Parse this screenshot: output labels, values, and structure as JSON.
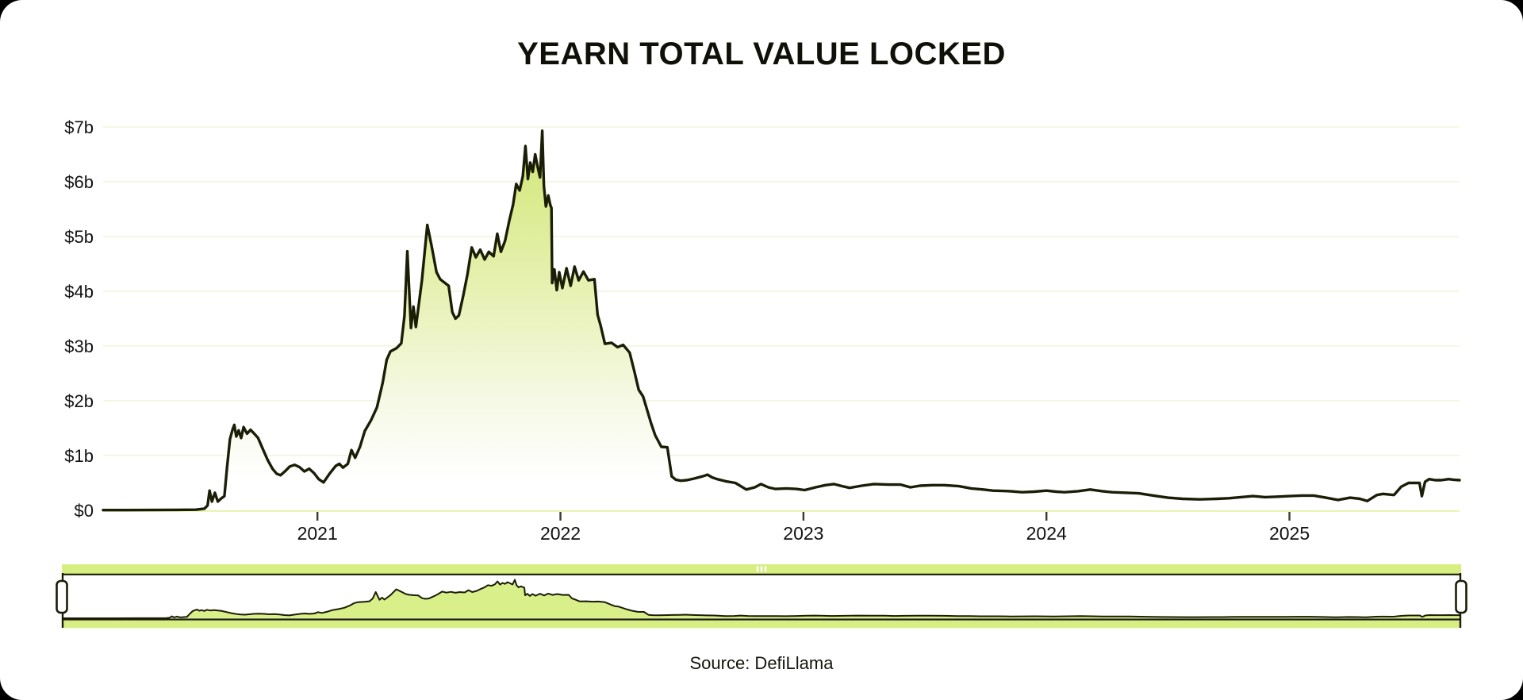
{
  "title": "YEARN TOTAL VALUE LOCKED",
  "source_caption": "Source: DefiLlama",
  "colors": {
    "page_background": "#000000",
    "card_background": "#ffffff",
    "line": "#1b1d06",
    "area_gradient_top": "#d0e673",
    "area_gradient_mid": "#e7f1b2",
    "area_gradient_low": "#f6f9e6",
    "area_gradient_bottom": "#ffffff",
    "gridline": "#f4f8e3",
    "zero_axis_line": "#e4f2a5",
    "axis_label": "#111111",
    "tick_mark": "#3a3a30",
    "navigator_rail": "#d7ee83",
    "navigator_mini_fill": "#d9ef8a",
    "navigator_handle_fill": "#ffffff",
    "navigator_grip": "#ffffff"
  },
  "chart_data": {
    "type": "area",
    "title": "YEARN TOTAL VALUE LOCKED",
    "series_name": "Yearn Total Value Locked",
    "x_unit": "decimal year",
    "y_unit": "USD billions",
    "ylim": [
      0,
      7.5
    ],
    "x_range": [
      2020.118,
      2025.7
    ],
    "grid": "horizontal, very faint",
    "legend": false,
    "y_tick_values": [
      0,
      1,
      2,
      3,
      4,
      5,
      6,
      7
    ],
    "y_tick_labels": [
      "$0",
      "$1b",
      "$2b",
      "$3b",
      "$4b",
      "$5b",
      "$6b",
      "$7b"
    ],
    "x_tick_values": [
      2021,
      2022,
      2023,
      2024,
      2025
    ],
    "x_tick_labels": [
      "2021",
      "2022",
      "2023",
      "2024",
      "2025"
    ],
    "navigator": {
      "present": true,
      "selection": "full range",
      "grip_icon": "three-vertical-bars"
    },
    "points": [
      [
        2020.118,
        0.004
      ],
      [
        2020.22,
        0.005
      ],
      [
        2020.32,
        0.006
      ],
      [
        2020.42,
        0.008
      ],
      [
        2020.5,
        0.012
      ],
      [
        2020.535,
        0.03
      ],
      [
        2020.548,
        0.09
      ],
      [
        2020.556,
        0.36
      ],
      [
        2020.566,
        0.16
      ],
      [
        2020.578,
        0.32
      ],
      [
        2020.59,
        0.16
      ],
      [
        2020.605,
        0.22
      ],
      [
        2020.617,
        0.26
      ],
      [
        2020.628,
        0.78
      ],
      [
        2020.64,
        1.3
      ],
      [
        2020.651,
        1.48
      ],
      [
        2020.658,
        1.56
      ],
      [
        2020.666,
        1.35
      ],
      [
        2020.676,
        1.46
      ],
      [
        2020.686,
        1.32
      ],
      [
        2020.696,
        1.52
      ],
      [
        2020.71,
        1.4
      ],
      [
        2020.725,
        1.47
      ],
      [
        2020.74,
        1.4
      ],
      [
        2020.756,
        1.32
      ],
      [
        2020.775,
        1.12
      ],
      [
        2020.795,
        0.92
      ],
      [
        2020.815,
        0.76
      ],
      [
        2020.832,
        0.67
      ],
      [
        2020.848,
        0.64
      ],
      [
        2020.866,
        0.71
      ],
      [
        2020.886,
        0.8
      ],
      [
        2020.906,
        0.83
      ],
      [
        2020.926,
        0.79
      ],
      [
        2020.946,
        0.71
      ],
      [
        2020.966,
        0.76
      ],
      [
        2020.986,
        0.68
      ],
      [
        2021.005,
        0.57
      ],
      [
        2021.025,
        0.51
      ],
      [
        2021.05,
        0.67
      ],
      [
        2021.075,
        0.81
      ],
      [
        2021.09,
        0.85
      ],
      [
        2021.105,
        0.78
      ],
      [
        2021.125,
        0.85
      ],
      [
        2021.14,
        1.1
      ],
      [
        2021.155,
        0.96
      ],
      [
        2021.175,
        1.16
      ],
      [
        2021.195,
        1.45
      ],
      [
        2021.22,
        1.64
      ],
      [
        2021.245,
        1.88
      ],
      [
        2021.268,
        2.32
      ],
      [
        2021.285,
        2.75
      ],
      [
        2021.3,
        2.9
      ],
      [
        2021.325,
        2.96
      ],
      [
        2021.345,
        3.05
      ],
      [
        2021.358,
        3.55
      ],
      [
        2021.37,
        4.73
      ],
      [
        2021.385,
        3.33
      ],
      [
        2021.395,
        3.72
      ],
      [
        2021.405,
        3.35
      ],
      [
        2021.43,
        4.2
      ],
      [
        2021.452,
        5.21
      ],
      [
        2021.47,
        4.82
      ],
      [
        2021.49,
        4.35
      ],
      [
        2021.505,
        4.22
      ],
      [
        2021.525,
        4.15
      ],
      [
        2021.54,
        4.1
      ],
      [
        2021.555,
        3.62
      ],
      [
        2021.568,
        3.5
      ],
      [
        2021.582,
        3.56
      ],
      [
        2021.6,
        3.92
      ],
      [
        2021.617,
        4.3
      ],
      [
        2021.635,
        4.8
      ],
      [
        2021.652,
        4.62
      ],
      [
        2021.67,
        4.76
      ],
      [
        2021.688,
        4.58
      ],
      [
        2021.705,
        4.72
      ],
      [
        2021.725,
        4.64
      ],
      [
        2021.74,
        5.05
      ],
      [
        2021.755,
        4.72
      ],
      [
        2021.772,
        4.92
      ],
      [
        2021.79,
        5.3
      ],
      [
        2021.805,
        5.58
      ],
      [
        2021.818,
        5.96
      ],
      [
        2021.832,
        5.84
      ],
      [
        2021.845,
        6.1
      ],
      [
        2021.856,
        6.65
      ],
      [
        2021.866,
        6.05
      ],
      [
        2021.876,
        6.35
      ],
      [
        2021.886,
        6.18
      ],
      [
        2021.896,
        6.5
      ],
      [
        2021.906,
        6.28
      ],
      [
        2021.916,
        6.08
      ],
      [
        2021.925,
        6.93
      ],
      [
        2021.932,
        5.92
      ],
      [
        2021.94,
        5.55
      ],
      [
        2021.95,
        5.75
      ],
      [
        2021.958,
        5.58
      ],
      [
        2021.963,
        5.52
      ],
      [
        2021.966,
        4.15
      ],
      [
        2021.975,
        4.4
      ],
      [
        2021.985,
        4.02
      ],
      [
        2021.995,
        4.35
      ],
      [
        2022.008,
        4.06
      ],
      [
        2022.025,
        4.42
      ],
      [
        2022.042,
        4.1
      ],
      [
        2022.058,
        4.45
      ],
      [
        2022.075,
        4.2
      ],
      [
        2022.095,
        4.36
      ],
      [
        2022.115,
        4.2
      ],
      [
        2022.14,
        4.22
      ],
      [
        2022.153,
        3.57
      ],
      [
        2022.165,
        3.38
      ],
      [
        2022.183,
        3.04
      ],
      [
        2022.21,
        3.06
      ],
      [
        2022.235,
        2.98
      ],
      [
        2022.258,
        3.02
      ],
      [
        2022.285,
        2.88
      ],
      [
        2022.305,
        2.52
      ],
      [
        2022.322,
        2.2
      ],
      [
        2022.34,
        2.08
      ],
      [
        2022.373,
        1.59
      ],
      [
        2022.39,
        1.37
      ],
      [
        2022.415,
        1.16
      ],
      [
        2022.44,
        1.15
      ],
      [
        2022.458,
        0.62
      ],
      [
        2022.475,
        0.56
      ],
      [
        2022.495,
        0.54
      ],
      [
        2022.52,
        0.55
      ],
      [
        2022.55,
        0.58
      ],
      [
        2022.585,
        0.62
      ],
      [
        2022.605,
        0.65
      ],
      [
        2022.625,
        0.6
      ],
      [
        2022.645,
        0.57
      ],
      [
        2022.68,
        0.53
      ],
      [
        2022.72,
        0.5
      ],
      [
        2022.765,
        0.38
      ],
      [
        2022.8,
        0.42
      ],
      [
        2022.825,
        0.48
      ],
      [
        2022.855,
        0.42
      ],
      [
        2022.885,
        0.39
      ],
      [
        2022.93,
        0.4
      ],
      [
        2022.97,
        0.39
      ],
      [
        2023.005,
        0.37
      ],
      [
        2023.05,
        0.42
      ],
      [
        2023.09,
        0.46
      ],
      [
        2023.125,
        0.48
      ],
      [
        2023.16,
        0.44
      ],
      [
        2023.19,
        0.41
      ],
      [
        2023.24,
        0.45
      ],
      [
        2023.29,
        0.48
      ],
      [
        2023.35,
        0.47
      ],
      [
        2023.4,
        0.47
      ],
      [
        2023.44,
        0.42
      ],
      [
        2023.48,
        0.45
      ],
      [
        2023.53,
        0.46
      ],
      [
        2023.58,
        0.46
      ],
      [
        2023.64,
        0.44
      ],
      [
        2023.69,
        0.4
      ],
      [
        2023.74,
        0.38
      ],
      [
        2023.78,
        0.36
      ],
      [
        2023.85,
        0.35
      ],
      [
        2023.9,
        0.33
      ],
      [
        2023.95,
        0.34
      ],
      [
        2024.0,
        0.36
      ],
      [
        2024.04,
        0.34
      ],
      [
        2024.075,
        0.33
      ],
      [
        2024.13,
        0.35
      ],
      [
        2024.18,
        0.38
      ],
      [
        2024.23,
        0.35
      ],
      [
        2024.27,
        0.33
      ],
      [
        2024.33,
        0.32
      ],
      [
        2024.38,
        0.31
      ],
      [
        2024.44,
        0.27
      ],
      [
        2024.5,
        0.23
      ],
      [
        2024.56,
        0.21
      ],
      [
        2024.63,
        0.2
      ],
      [
        2024.7,
        0.21
      ],
      [
        2024.75,
        0.22
      ],
      [
        2024.8,
        0.24
      ],
      [
        2024.85,
        0.26
      ],
      [
        2024.9,
        0.24
      ],
      [
        2024.95,
        0.25
      ],
      [
        2025.0,
        0.26
      ],
      [
        2025.05,
        0.27
      ],
      [
        2025.1,
        0.27
      ],
      [
        2025.15,
        0.23
      ],
      [
        2025.2,
        0.19
      ],
      [
        2025.25,
        0.23
      ],
      [
        2025.29,
        0.21
      ],
      [
        2025.32,
        0.17
      ],
      [
        2025.36,
        0.28
      ],
      [
        2025.385,
        0.3
      ],
      [
        2025.43,
        0.28
      ],
      [
        2025.46,
        0.43
      ],
      [
        2025.49,
        0.5
      ],
      [
        2025.52,
        0.5
      ],
      [
        2025.535,
        0.5
      ],
      [
        2025.545,
        0.26
      ],
      [
        2025.558,
        0.52
      ],
      [
        2025.575,
        0.57
      ],
      [
        2025.6,
        0.55
      ],
      [
        2025.625,
        0.55
      ],
      [
        2025.655,
        0.57
      ],
      [
        2025.675,
        0.56
      ],
      [
        2025.7,
        0.55
      ]
    ]
  }
}
